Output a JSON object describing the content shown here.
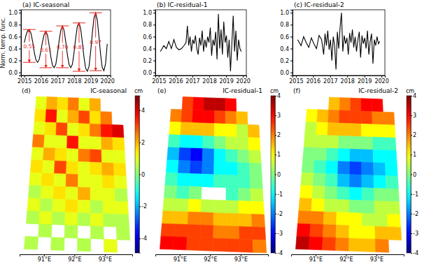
{
  "chart_data": [
    {
      "type": "line",
      "title": "(a) IC-seasonal",
      "ylabel": "Norm. temp. func.",
      "color": "#000000",
      "x": [
        2015.0,
        2015.1,
        2015.2,
        2015.3,
        2015.4,
        2015.5,
        2015.6,
        2015.7,
        2015.8,
        2015.9,
        2016.0,
        2016.1,
        2016.2,
        2016.3,
        2016.4,
        2016.5,
        2016.6,
        2016.7,
        2016.8,
        2016.9,
        2017.0,
        2017.1,
        2017.2,
        2017.3,
        2017.4,
        2017.5,
        2017.6,
        2017.7,
        2017.8,
        2017.9,
        2018.0,
        2018.1,
        2018.2,
        2018.3,
        2018.4,
        2018.5,
        2018.6,
        2018.7,
        2018.8,
        2018.9,
        2019.0,
        2019.1,
        2019.2,
        2019.3,
        2019.4,
        2019.5,
        2019.6,
        2019.7,
        2019.8,
        2019.9,
        2020.0
      ],
      "values": [
        0.5,
        0.62,
        0.7,
        0.72,
        0.66,
        0.52,
        0.34,
        0.21,
        0.17,
        0.22,
        0.36,
        0.52,
        0.64,
        0.69,
        0.62,
        0.45,
        0.26,
        0.12,
        0.08,
        0.14,
        0.32,
        0.53,
        0.71,
        0.78,
        0.7,
        0.51,
        0.29,
        0.13,
        0.08,
        0.14,
        0.34,
        0.58,
        0.78,
        0.83,
        0.73,
        0.5,
        0.25,
        0.07,
        0.02,
        0.1,
        0.35,
        0.66,
        0.91,
        1.0,
        0.88,
        0.6,
        0.3,
        0.08,
        0.03,
        0.15,
        0.48
      ],
      "xlim": [
        2014.8,
        2020.2
      ],
      "ylim": [
        -0.05,
        1.05
      ],
      "xticks": [
        2015,
        2016,
        2017,
        2018,
        2019,
        2020
      ],
      "yticks": [
        {
          "value": 0,
          "label": "0.0"
        },
        {
          "value": 0.2,
          "label": "0.2"
        },
        {
          "value": 0.4,
          "label": "0.4"
        },
        {
          "value": 0.6,
          "label": "0.6"
        },
        {
          "value": 0.8,
          "label": "0.8"
        },
        {
          "value": 1,
          "label": "1.0"
        }
      ],
      "annotations": [
        {
          "text": "0.55",
          "x": 2015.3,
          "y_top": 0.72,
          "y_bottom": 0.17
        },
        {
          "text": "0.61",
          "x": 2016.3,
          "y_top": 0.69,
          "y_bottom": 0.08
        },
        {
          "text": "0.70",
          "x": 2017.3,
          "y_top": 0.78,
          "y_bottom": 0.08
        },
        {
          "text": "0.81",
          "x": 2018.3,
          "y_top": 0.83,
          "y_bottom": 0.02
        },
        {
          "text": "0.97",
          "x": 2019.3,
          "y_top": 1.0,
          "y_bottom": 0.03
        }
      ]
    },
    {
      "type": "line",
      "title": "(b) IC-residual-1",
      "color": "#000000",
      "x": [
        2015.1,
        2015.3,
        2015.45,
        2015.6,
        2015.75,
        2015.9,
        2016.05,
        2016.2,
        2016.35,
        2016.5,
        2016.62,
        2016.7,
        2016.78,
        2016.86,
        2016.94,
        2017.02,
        2017.1,
        2017.18,
        2017.26,
        2017.34,
        2017.42,
        2017.5,
        2017.58,
        2017.66,
        2017.74,
        2017.82,
        2017.9,
        2017.98,
        2018.06,
        2018.14,
        2018.22,
        2018.3,
        2018.38,
        2018.46,
        2018.54,
        2018.62,
        2018.7,
        2018.78,
        2018.86,
        2018.94,
        2019.02,
        2019.1,
        2019.18,
        2019.26,
        2019.34,
        2019.42,
        2019.5,
        2019.58,
        2019.66,
        2019.74,
        2019.82,
        2019.9
      ],
      "values": [
        0.35,
        0.45,
        0.4,
        0.52,
        0.4,
        0.55,
        0.42,
        0.38,
        0.4,
        0.45,
        0.5,
        0.78,
        0.45,
        0.6,
        0.35,
        0.55,
        0.48,
        0.62,
        0.4,
        0.3,
        0.58,
        0.45,
        0.7,
        0.35,
        0.55,
        0.42,
        0.6,
        0.5,
        0.75,
        0.28,
        0.55,
        0.45,
        0.68,
        0.22,
        0.98,
        0.4,
        0.72,
        0.3,
        0.85,
        0.5,
        0.62,
        0.25,
        0.55,
        0.02,
        0.48,
        0.95,
        0.35,
        0.7,
        0.2,
        0.55,
        0.4,
        0.35
      ],
      "xlim": [
        2014.8,
        2020.2
      ],
      "ylim": [
        -0.05,
        1.05
      ],
      "xticks": [
        2015,
        2016,
        2017,
        2018,
        2019,
        2020
      ],
      "yticks": [
        {
          "value": 0,
          "label": "0.0"
        },
        {
          "value": 0.2,
          "label": "0.2"
        },
        {
          "value": 0.4,
          "label": "0.4"
        },
        {
          "value": 0.6,
          "label": "0.6"
        },
        {
          "value": 0.8,
          "label": "0.8"
        },
        {
          "value": 1,
          "label": "1.0"
        }
      ]
    },
    {
      "type": "line",
      "title": "(c) IC-residual-2",
      "color": "#000000",
      "x": [
        2015.1,
        2015.3,
        2015.45,
        2015.6,
        2015.75,
        2015.9,
        2016.05,
        2016.2,
        2016.35,
        2016.5,
        2016.62,
        2016.7,
        2016.78,
        2016.86,
        2016.94,
        2017.02,
        2017.1,
        2017.18,
        2017.26,
        2017.34,
        2017.42,
        2017.5,
        2017.58,
        2017.66,
        2017.74,
        2017.82,
        2017.9,
        2017.98,
        2018.06,
        2018.14,
        2018.22,
        2018.3,
        2018.38,
        2018.46,
        2018.54,
        2018.62,
        2018.7,
        2018.78,
        2018.86,
        2018.94,
        2019.02,
        2019.1,
        2019.18,
        2019.26,
        2019.34,
        2019.42,
        2019.5,
        2019.58,
        2019.66,
        2019.74,
        2019.82,
        2019.9
      ],
      "values": [
        0.55,
        0.45,
        0.6,
        0.5,
        0.42,
        0.58,
        0.48,
        0.4,
        0.62,
        0.55,
        0.3,
        0.65,
        0.45,
        0.7,
        0.38,
        0.55,
        0.2,
        0.6,
        0.45,
        0.05,
        0.68,
        0.4,
        0.75,
        1.0,
        0.35,
        0.62,
        0.48,
        0.58,
        0.3,
        0.66,
        0.5,
        0.72,
        0.42,
        0.6,
        0.35,
        0.55,
        0.68,
        0.25,
        0.62,
        0.48,
        0.58,
        0.4,
        0.7,
        0.3,
        0.52,
        0.65,
        0.15,
        0.55,
        0.45,
        0.6,
        0.48,
        0.52
      ],
      "xlim": [
        2014.8,
        2020.2
      ],
      "ylim": [
        -0.05,
        1.05
      ],
      "xticks": [
        2015,
        2016,
        2017,
        2018,
        2019,
        2020
      ],
      "yticks": [
        {
          "value": 0,
          "label": "0.0"
        },
        {
          "value": 0.2,
          "label": "0.2"
        },
        {
          "value": 0.4,
          "label": "0.4"
        },
        {
          "value": 0.6,
          "label": "0.6"
        },
        {
          "value": 0.8,
          "label": "0.8"
        },
        {
          "value": 1,
          "label": "1.0"
        }
      ]
    },
    {
      "type": "heatmap",
      "panel": "(d)",
      "title": "IC-seasonal",
      "cells": [
        [
          1.0,
          2.0,
          1.5,
          2.5,
          1.0,
          2.0,
          null,
          null
        ],
        [
          1.5,
          3.5,
          1.0,
          2.0,
          3.0,
          1.5,
          2.5,
          null
        ],
        [
          1.0,
          1.5,
          3.0,
          1.0,
          1.5,
          2.5,
          3.5,
          4.0
        ],
        [
          2.5,
          1.0,
          1.0,
          3.5,
          1.0,
          1.0,
          2.0,
          1.5
        ],
        [
          1.0,
          2.0,
          1.5,
          1.0,
          2.5,
          3.0,
          1.0,
          1.0
        ],
        [
          1.5,
          1.0,
          3.0,
          1.5,
          1.0,
          1.5,
          2.0,
          1.5
        ],
        [
          1.0,
          1.5,
          1.0,
          2.5,
          1.0,
          1.0,
          1.5,
          1.0
        ],
        [
          0.5,
          1.0,
          1.5,
          1.0,
          2.0,
          1.0,
          1.0,
          0.5
        ],
        [
          1.0,
          0.5,
          1.0,
          1.5,
          1.0,
          0.5,
          1.0,
          1.0
        ],
        [
          0.5,
          1.0,
          0.5,
          1.0,
          0.5,
          1.0,
          0.5,
          0.5
        ],
        [
          null,
          0.5,
          null,
          0.5,
          null,
          0.5,
          null,
          0.5
        ],
        [
          0.5,
          null,
          0.5,
          null,
          0.5,
          null,
          1.0,
          null
        ]
      ],
      "xlim": [
        90.2,
        93.9
      ],
      "xticks": [
        {
          "value": 91,
          "label": "91°E"
        },
        {
          "value": 92,
          "label": "92°E"
        },
        {
          "value": 93,
          "label": "93°E"
        }
      ],
      "colorbar_range": [
        -4.9,
        4.9
      ],
      "colorbar_ticks": [
        -4,
        -2,
        0,
        2,
        4
      ],
      "colorbar_label": "cm"
    },
    {
      "type": "heatmap",
      "panel": "(e)",
      "title": "IC-residual-1",
      "cells": [
        [
          null,
          2.5,
          3.0,
          3.5,
          3.5,
          3.0,
          null,
          null
        ],
        [
          2.0,
          2.5,
          3.0,
          3.0,
          2.5,
          2.0,
          1.5,
          null
        ],
        [
          1.0,
          1.5,
          1.5,
          1.5,
          1.0,
          1.0,
          0.5,
          1.5
        ],
        [
          -0.5,
          -1.0,
          -1.0,
          -0.5,
          0.0,
          0.5,
          0.5,
          1.0
        ],
        [
          -1.5,
          -2.5,
          -3.0,
          -2.0,
          -1.0,
          -0.5,
          0.0,
          0.5
        ],
        [
          -1.0,
          -2.0,
          -2.5,
          -2.0,
          -1.0,
          -1.0,
          -0.5,
          0.0
        ],
        [
          -0.5,
          -1.0,
          -1.0,
          -1.0,
          -0.5,
          -0.5,
          -0.5,
          0.0
        ],
        [
          0.0,
          -0.5,
          0.0,
          null,
          null,
          -0.5,
          0.0,
          0.5
        ],
        [
          0.5,
          0.5,
          1.0,
          0.5,
          0.5,
          0.5,
          1.0,
          1.0
        ],
        [
          1.5,
          1.5,
          2.0,
          2.0,
          1.5,
          1.5,
          1.5,
          2.0
        ],
        [
          2.5,
          2.5,
          2.5,
          2.5,
          2.0,
          2.0,
          2.5,
          2.5
        ],
        [
          3.0,
          3.0,
          2.5,
          2.5,
          2.5,
          2.5,
          2.5,
          2.0
        ]
      ],
      "xlim": [
        90.2,
        93.9
      ],
      "xticks": [
        {
          "value": 91,
          "label": "91°E"
        },
        {
          "value": 92,
          "label": "92°E"
        },
        {
          "value": 93,
          "label": "93°E"
        }
      ],
      "colorbar_range": [
        -4,
        4
      ],
      "colorbar_ticks": [
        -4,
        -3,
        -2,
        -1,
        0,
        1,
        2,
        3,
        4
      ],
      "colorbar_label": "cm"
    },
    {
      "type": "heatmap",
      "panel": "(f)",
      "title": "IC-residual-2",
      "cells": [
        [
          null,
          null,
          1.5,
          2.0,
          2.5,
          3.0,
          3.0,
          null
        ],
        [
          1.0,
          1.5,
          2.0,
          2.5,
          2.5,
          2.5,
          2.0,
          2.0
        ],
        [
          0.5,
          1.0,
          1.5,
          1.5,
          1.5,
          1.0,
          1.0,
          1.0
        ],
        [
          0.5,
          0.5,
          0.5,
          0.0,
          0.0,
          0.0,
          -0.5,
          -0.5
        ],
        [
          0.0,
          0.0,
          -0.5,
          -1.0,
          -1.5,
          -1.5,
          -1.0,
          -1.0
        ],
        [
          0.0,
          -0.5,
          -1.0,
          -2.0,
          -2.5,
          -2.0,
          -1.5,
          -1.0
        ],
        [
          0.5,
          0.0,
          -0.5,
          -1.5,
          -2.0,
          -1.5,
          -1.0,
          -0.5
        ],
        [
          1.0,
          0.5,
          0.0,
          -0.5,
          -1.0,
          -0.5,
          0.0,
          0.0
        ],
        [
          1.5,
          1.0,
          0.5,
          0.5,
          0.0,
          0.0,
          0.5,
          0.5
        ],
        [
          2.0,
          2.0,
          1.5,
          1.0,
          1.0,
          0.5,
          0.5,
          1.0
        ],
        [
          3.0,
          2.5,
          2.0,
          1.5,
          1.0,
          1.0,
          1.5,
          1.5
        ],
        [
          3.5,
          3.0,
          2.5,
          2.0,
          1.5,
          1.5,
          2.0,
          null
        ]
      ],
      "xlim": [
        90.2,
        93.9
      ],
      "xticks": [
        {
          "value": 91,
          "label": "91°E"
        },
        {
          "value": 92,
          "label": "92°E"
        },
        {
          "value": 93,
          "label": "93°E"
        }
      ],
      "colorbar_range": [
        -4,
        4
      ],
      "colorbar_ticks": [
        -4,
        -3,
        -2,
        -1,
        0,
        1,
        2,
        3,
        4
      ],
      "colorbar_label": "cm"
    }
  ]
}
